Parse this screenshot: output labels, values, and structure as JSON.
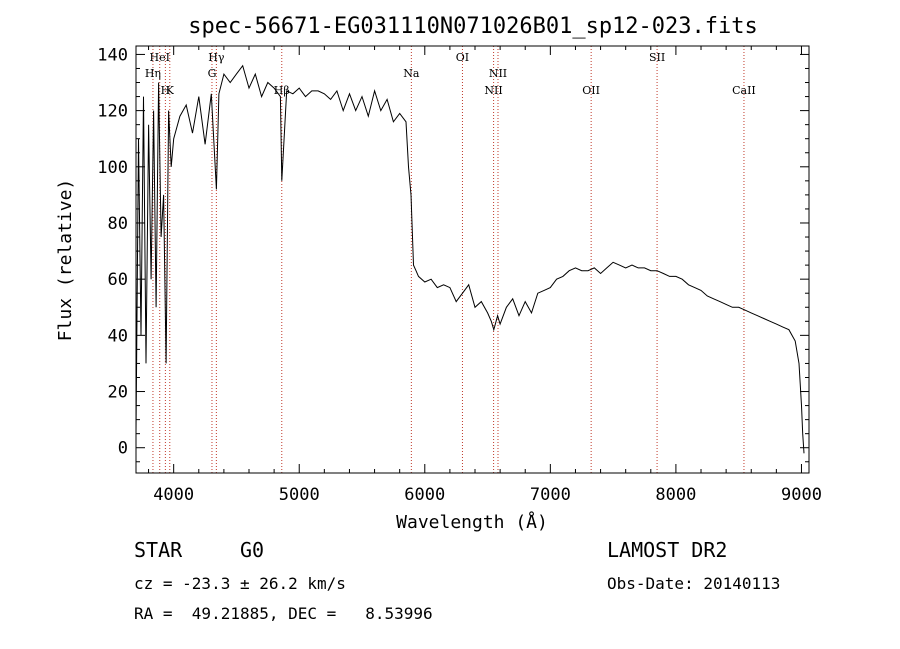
{
  "chart_data": {
    "type": "line",
    "title": "spec-56671-EG031110N071026B01_sp12-023.fits",
    "xlabel": "Wavelength (Å)",
    "ylabel": "Flux (relative)",
    "xlim": [
      3700,
      9060
    ],
    "ylim": [
      -9,
      143
    ],
    "xticks": [
      4000,
      5000,
      6000,
      7000,
      8000,
      9000
    ],
    "yticks": [
      0,
      20,
      40,
      60,
      80,
      100,
      120,
      140
    ],
    "grid": false,
    "series": [
      {
        "x": [
          3700,
          3720,
          3740,
          3760,
          3780,
          3800,
          3820,
          3840,
          3860,
          3880,
          3900,
          3920,
          3940,
          3960,
          3980,
          4000,
          4050,
          4100,
          4150,
          4200,
          4250,
          4300,
          4340,
          4360,
          4400,
          4450,
          4500,
          4550,
          4600,
          4650,
          4700,
          4750,
          4800,
          4850,
          4861,
          4900,
          4950,
          5000,
          5050,
          5100,
          5150,
          5200,
          5250,
          5300,
          5350,
          5400,
          5450,
          5500,
          5550,
          5600,
          5650,
          5700,
          5750,
          5800,
          5850,
          5870,
          5890,
          5910,
          5930,
          5950,
          6000,
          6050,
          6100,
          6150,
          6200,
          6250,
          6300,
          6350,
          6400,
          6450,
          6500,
          6530,
          6550,
          6580,
          6600,
          6650,
          6700,
          6750,
          6800,
          6850,
          6900,
          6950,
          7000,
          7050,
          7100,
          7150,
          7200,
          7250,
          7300,
          7350,
          7400,
          7450,
          7500,
          7550,
          7600,
          7650,
          7700,
          7750,
          7800,
          7850,
          7900,
          7950,
          8000,
          8050,
          8100,
          8150,
          8200,
          8250,
          8300,
          8350,
          8400,
          8450,
          8500,
          8550,
          8600,
          8650,
          8700,
          8750,
          8800,
          8850,
          8900,
          8950,
          8980,
          9000,
          9010,
          9020
        ],
        "values": [
          5,
          110,
          40,
          125,
          30,
          115,
          60,
          120,
          50,
          130,
          75,
          90,
          30,
          120,
          100,
          110,
          118,
          122,
          112,
          125,
          108,
          126,
          92,
          126,
          133,
          130,
          133,
          136,
          128,
          133,
          125,
          130,
          128,
          125,
          95,
          127,
          126,
          128,
          125,
          127,
          127,
          126,
          124,
          127,
          120,
          126,
          120,
          125,
          118,
          127,
          120,
          124,
          116,
          119,
          116,
          100,
          90,
          65,
          63,
          61,
          59,
          60,
          57,
          58,
          57,
          52,
          55,
          58,
          50,
          52,
          48,
          45,
          42,
          47,
          44,
          50,
          53,
          47,
          52,
          48,
          55,
          56,
          57,
          60,
          61,
          63,
          64,
          63,
          63,
          64,
          62,
          64,
          66,
          65,
          64,
          65,
          64,
          64,
          63,
          63,
          62,
          61,
          61,
          60,
          58,
          57,
          56,
          54,
          53,
          52,
          51,
          50,
          50,
          49,
          48,
          47,
          46,
          45,
          44,
          43,
          42,
          38,
          30,
          15,
          5,
          -2
        ]
      }
    ],
    "lines": [
      {
        "name": "Hη",
        "wave": 3835,
        "row": 2
      },
      {
        "name": "HeI",
        "wave": 3889,
        "row": 1
      },
      {
        "name": "H",
        "wave": 3934,
        "row": 3
      },
      {
        "name": "K",
        "wave": 3969,
        "row": 3
      },
      {
        "name": "Hγ",
        "wave": 4340,
        "row": 1
      },
      {
        "name": "G",
        "wave": 4305,
        "row": 2
      },
      {
        "name": "Hβ",
        "wave": 4861,
        "row": 3
      },
      {
        "name": "Na",
        "wave": 5893,
        "row": 2
      },
      {
        "name": "OI",
        "wave": 6300,
        "row": 1
      },
      {
        "name": "NII",
        "wave": 6548,
        "row": 3
      },
      {
        "name": "NII",
        "wave": 6583,
        "row": 2
      },
      {
        "name": "OII",
        "wave": 7325,
        "row": 3
      },
      {
        "name": "SII",
        "wave": 7850,
        "row": 1
      },
      {
        "name": "CaII",
        "wave": 8542,
        "row": 3
      }
    ]
  },
  "info": {
    "class": "STAR",
    "subclass": "G0",
    "survey": "LAMOST DR2",
    "cz": "cz = -23.3 ± 26.2 km/s",
    "obs_date": "Obs-Date: 20140113",
    "radec": "RA =  49.21885, DEC =   8.53996"
  }
}
